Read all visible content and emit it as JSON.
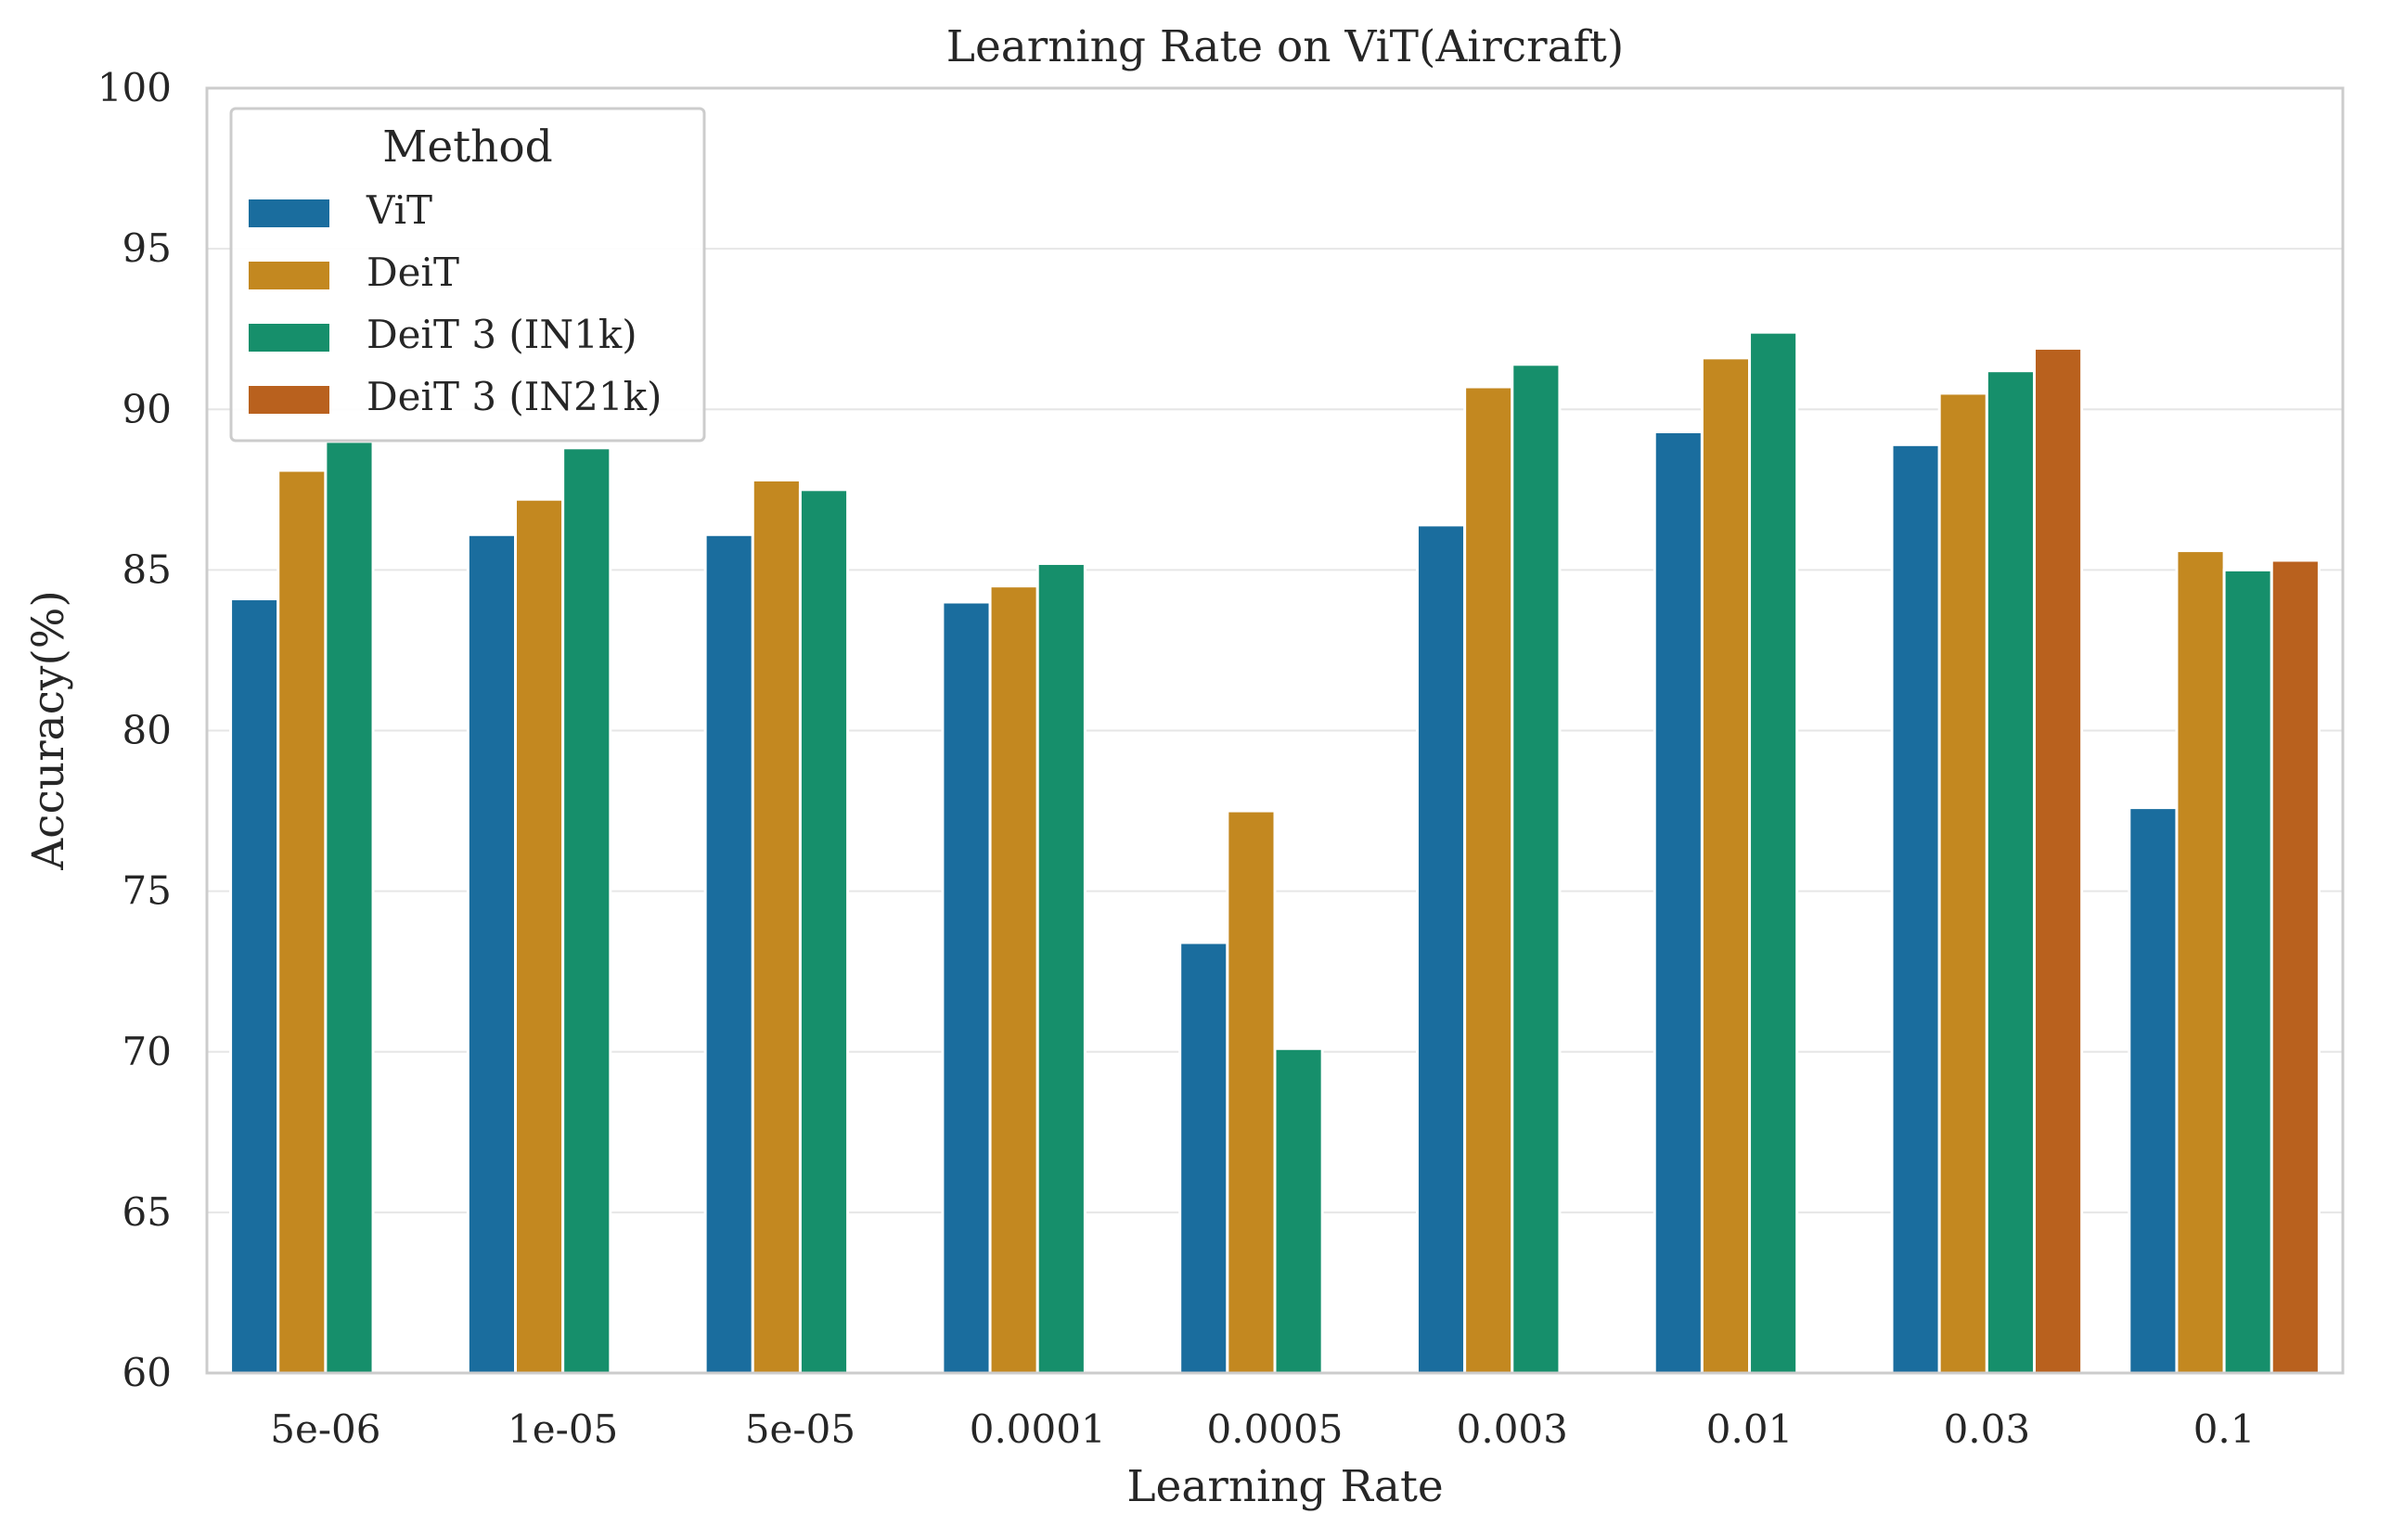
{
  "chart_data": {
    "type": "bar",
    "title": "Learning Rate on ViT(Aircraft)",
    "xlabel": "Learning Rate",
    "ylabel": "Accuracy(%)",
    "ylim": [
      60,
      100
    ],
    "yticks": [
      60,
      65,
      70,
      75,
      80,
      85,
      90,
      95,
      100
    ],
    "grid": "horizontal",
    "categories": [
      "5e-06",
      "1e-05",
      "5e-05",
      "0.0001",
      "0.0005",
      "0.003",
      "0.01",
      "0.03",
      "0.1"
    ],
    "legend": {
      "title": "Method",
      "placement": "top-left"
    },
    "series": [
      {
        "name": "ViT",
        "color": "#1a6d9e",
        "values": [
          84.1,
          86.1,
          86.1,
          84.0,
          73.4,
          86.4,
          89.3,
          88.9,
          77.6
        ]
      },
      {
        "name": "DeiT",
        "color": "#c38820",
        "values": [
          88.1,
          87.2,
          87.8,
          84.5,
          77.5,
          90.7,
          91.6,
          90.5,
          85.6
        ]
      },
      {
        "name": "DeiT 3 (IN1k)",
        "color": "#168f6b",
        "values": [
          89.0,
          88.8,
          87.5,
          85.2,
          70.1,
          91.4,
          92.4,
          91.2,
          85.0
        ]
      },
      {
        "name": "DeiT 3 (IN21k)",
        "color": "#b9611e",
        "values": [
          null,
          null,
          null,
          null,
          null,
          null,
          null,
          91.9,
          85.3
        ]
      }
    ]
  }
}
